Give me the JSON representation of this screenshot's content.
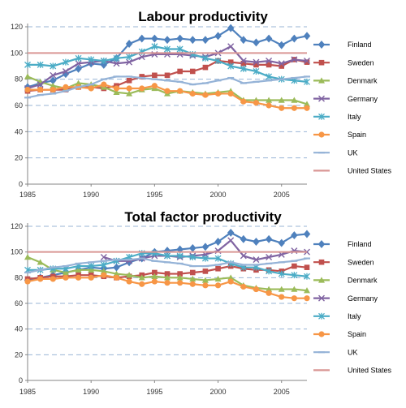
{
  "chart_data": [
    {
      "type": "line",
      "title": "Labour productivity",
      "x": [
        1985,
        1986,
        1987,
        1988,
        1989,
        1990,
        1991,
        1992,
        1993,
        1994,
        1995,
        1996,
        1997,
        1998,
        1999,
        2000,
        2001,
        2002,
        2003,
        2004,
        2005,
        2006,
        2007
      ],
      "xticks": [
        1985,
        1990,
        1995,
        2000,
        2005
      ],
      "ylim": [
        0,
        120
      ],
      "yticks": [
        0,
        20,
        40,
        60,
        80,
        100,
        120
      ],
      "grid": true,
      "legend": "right",
      "series": [
        {
          "name": "Finland",
          "color": "#4f81bd",
          "marker": "diamond",
          "values": [
            74,
            77,
            79,
            84,
            88,
            92,
            91,
            96,
            107,
            111,
            111,
            110,
            111,
            110,
            110,
            113,
            119,
            110,
            108,
            111,
            106,
            111,
            113
          ]
        },
        {
          "name": "Sweden",
          "color": "#c0504d",
          "marker": "square",
          "values": [
            71,
            72,
            72,
            72,
            74,
            74,
            73,
            75,
            79,
            82,
            83,
            83,
            86,
            86,
            89,
            94,
            93,
            92,
            91,
            91,
            90,
            95,
            93
          ]
        },
        {
          "name": "Denmark",
          "color": "#9bbb59",
          "marker": "triangle",
          "values": [
            82,
            78,
            75,
            73,
            77,
            76,
            74,
            70,
            69,
            72,
            73,
            69,
            71,
            70,
            69,
            70,
            71,
            64,
            64,
            64,
            64,
            64,
            61
          ]
        },
        {
          "name": "Germany",
          "color": "#8064a2",
          "marker": "x",
          "values": [
            73,
            76,
            83,
            86,
            92,
            93,
            94,
            92,
            93,
            97,
            99,
            99,
            99,
            98,
            97,
            100,
            105,
            94,
            93,
            94,
            92,
            95,
            94
          ]
        },
        {
          "name": "Italy",
          "color": "#4bacc6",
          "marker": "star",
          "values": [
            91,
            91,
            90,
            93,
            96,
            95,
            94,
            96,
            97,
            101,
            105,
            103,
            103,
            99,
            96,
            94,
            90,
            88,
            86,
            82,
            80,
            79,
            78
          ]
        },
        {
          "name": "Spain",
          "color": "#f79646",
          "marker": "circle",
          "values": [
            72,
            72,
            72,
            74,
            74,
            73,
            76,
            73,
            73,
            73,
            75,
            71,
            71,
            69,
            68,
            69,
            69,
            63,
            62,
            60,
            58,
            58,
            58
          ]
        },
        {
          "name": "UK",
          "color": "#95b3d7",
          "marker": "dash",
          "values": [
            66,
            68,
            69,
            71,
            74,
            76,
            80,
            82,
            82,
            81,
            80,
            79,
            78,
            76,
            77,
            79,
            81,
            77,
            78,
            79,
            80,
            81,
            82
          ]
        },
        {
          "name": "United States",
          "color": "#d99694",
          "marker": "none",
          "values": [
            100,
            100,
            100,
            100,
            100,
            100,
            100,
            100,
            100,
            100,
            100,
            100,
            100,
            100,
            100,
            100,
            100,
            100,
            100,
            100,
            100,
            100,
            100
          ]
        }
      ]
    },
    {
      "type": "line",
      "title": "Total factor productivity",
      "x": [
        1985,
        1986,
        1987,
        1988,
        1989,
        1990,
        1991,
        1992,
        1993,
        1994,
        1995,
        1996,
        1997,
        1998,
        1999,
        2000,
        2001,
        2002,
        2003,
        2004,
        2005,
        2006,
        2007
      ],
      "xticks": [
        1985,
        1990,
        1995,
        2000,
        2005
      ],
      "ylim": [
        0,
        120
      ],
      "yticks": [
        0,
        20,
        40,
        60,
        80,
        100,
        120
      ],
      "grid": true,
      "legend": "right",
      "series": [
        {
          "name": "Finland",
          "color": "#4f81bd",
          "marker": "diamond",
          "values": [
            78,
            80,
            82,
            84,
            86,
            88,
            87,
            88,
            92,
            95,
            100,
            101,
            102,
            103,
            104,
            108,
            115,
            110,
            108,
            110,
            107,
            113,
            114
          ]
        },
        {
          "name": "Sweden",
          "color": "#c0504d",
          "marker": "square",
          "values": [
            79,
            80,
            81,
            81,
            82,
            82,
            81,
            80,
            81,
            82,
            84,
            83,
            83,
            84,
            85,
            87,
            89,
            87,
            86,
            86,
            85,
            89,
            88
          ]
        },
        {
          "name": "Denmark",
          "color": "#9bbb59",
          "marker": "triangle",
          "values": [
            96,
            92,
            86,
            84,
            86,
            86,
            85,
            83,
            82,
            80,
            81,
            80,
            80,
            79,
            78,
            79,
            80,
            74,
            72,
            71,
            71,
            71,
            70
          ]
        },
        {
          "name": "Germany",
          "color": "#8064a2",
          "marker": "x",
          "values": [
            null,
            null,
            null,
            null,
            null,
            null,
            96,
            93,
            93,
            95,
            97,
            97,
            96,
            97,
            98,
            101,
            109,
            97,
            94,
            96,
            98,
            101,
            100
          ]
        },
        {
          "name": "Italy",
          "color": "#4bacc6",
          "marker": "star",
          "values": [
            86,
            86,
            87,
            87,
            89,
            89,
            90,
            93,
            96,
            99,
            99,
            97,
            97,
            96,
            95,
            95,
            91,
            88,
            88,
            85,
            83,
            82,
            81
          ]
        },
        {
          "name": "Spain",
          "color": "#f79646",
          "marker": "circle",
          "values": [
            77,
            79,
            79,
            80,
            80,
            80,
            82,
            80,
            77,
            75,
            77,
            76,
            76,
            75,
            74,
            74,
            77,
            73,
            71,
            68,
            65,
            64,
            64
          ]
        },
        {
          "name": "UK",
          "color": "#95b3d7",
          "marker": "dash",
          "values": [
            84,
            86,
            88,
            89,
            91,
            92,
            93,
            94,
            94,
            95,
            93,
            92,
            91,
            89,
            89,
            90,
            92,
            90,
            90,
            91,
            92,
            93,
            95
          ]
        },
        {
          "name": "United States",
          "color": "#d99694",
          "marker": "none",
          "values": [
            100,
            100,
            100,
            100,
            100,
            100,
            100,
            100,
            100,
            100,
            100,
            100,
            100,
            100,
            100,
            100,
            100,
            100,
            100,
            100,
            100,
            100,
            100
          ]
        }
      ]
    }
  ]
}
